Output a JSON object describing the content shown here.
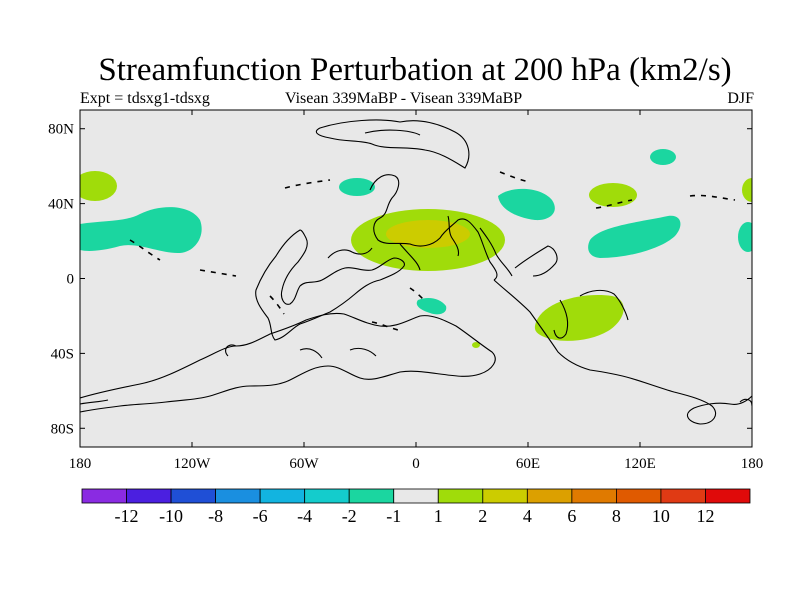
{
  "header": {
    "title": "Streamfunction Perturbation at 200 hPa (km2/s)",
    "left": "Expt = tdsxg1-tdsxg",
    "center": "Visean 339MaBP - Visean 339MaBP",
    "right": "DJF"
  },
  "map": {
    "lon_range": [
      -180,
      180
    ],
    "lat_range": [
      -90,
      90
    ],
    "background": "#e8e8e8",
    "lon_ticks": [
      {
        "value": -180,
        "label": "180"
      },
      {
        "value": -120,
        "label": "120W"
      },
      {
        "value": -60,
        "label": "60W"
      },
      {
        "value": 0,
        "label": "0"
      },
      {
        "value": 60,
        "label": "60E"
      },
      {
        "value": 120,
        "label": "120E"
      },
      {
        "value": 180,
        "label": "180"
      }
    ],
    "lat_ticks": [
      {
        "value": 80,
        "label": "80N"
      },
      {
        "value": 40,
        "label": "40N"
      },
      {
        "value": 0,
        "label": "0"
      },
      {
        "value": -40,
        "label": "40S"
      },
      {
        "value": -80,
        "label": "80S"
      }
    ]
  },
  "colorbar": {
    "colors": [
      "#8a2be2",
      "#4b1fe0",
      "#1f4fd6",
      "#1a8fe0",
      "#12b4e0",
      "#14cccc",
      "#1bd6a0",
      "#e8e8e8",
      "#a0dc0a",
      "#cccc00",
      "#dca000",
      "#e07a00",
      "#e05a00",
      "#e03a14",
      "#e00a0a"
    ],
    "labels": [
      "-12",
      "-10",
      "-8",
      "-6",
      "-4",
      "-2",
      "-1",
      "1",
      "2",
      "4",
      "6",
      "8",
      "10",
      "12"
    ]
  }
}
